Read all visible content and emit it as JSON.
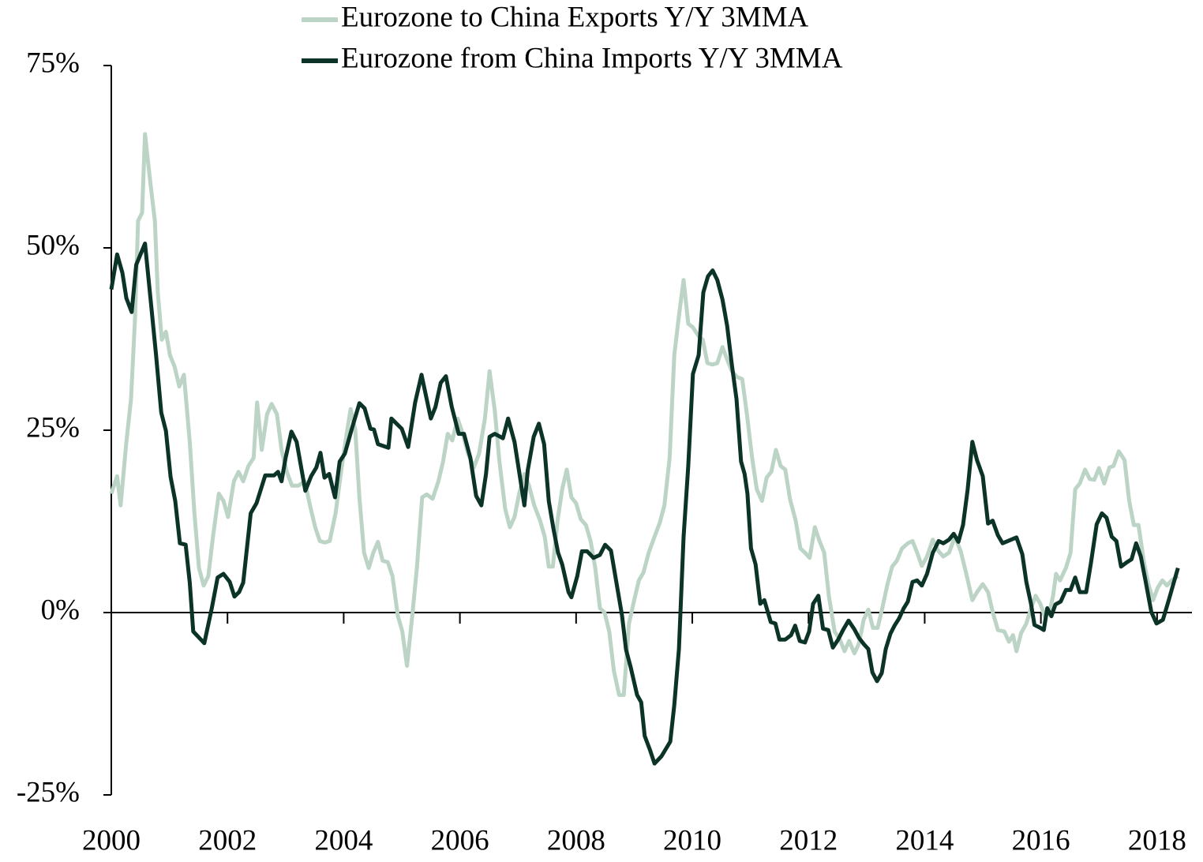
{
  "chart_data": {
    "type": "line",
    "xlim": [
      2000,
      2018.6
    ],
    "xticks": [
      2000,
      2002,
      2004,
      2006,
      2008,
      2010,
      2012,
      2014,
      2016,
      2018
    ],
    "ylim": [
      -25,
      75
    ],
    "yticks": [
      {
        "value": 75,
        "label": "75%"
      },
      {
        "value": 50,
        "label": "50%"
      },
      {
        "value": 25,
        "label": "25%"
      },
      {
        "value": 0,
        "label": "0%"
      },
      {
        "value": -25,
        "label": "-25%"
      }
    ],
    "legend": "top",
    "series": [
      {
        "name": "Eurozone to China Exports Y/Y 3MMA",
        "color": "#bcd4c6",
        "x": [
          2000.0,
          2000.1,
          2000.16,
          2000.26,
          2000.34,
          2000.41,
          2000.46,
          2000.53,
          2000.58,
          2000.67,
          2000.75,
          2000.8,
          2000.87,
          2000.94,
          2001.01,
          2001.09,
          2001.17,
          2001.25,
          2001.35,
          2001.43,
          2001.51,
          2001.59,
          2001.67,
          2001.75,
          2001.85,
          2001.93,
          2002.01,
          2002.11,
          2002.19,
          2002.27,
          2002.36,
          2002.45,
          2002.51,
          2002.59,
          2002.68,
          2002.76,
          2002.85,
          2002.93,
          2003.02,
          2003.11,
          2003.22,
          2003.33,
          2003.42,
          2003.51,
          2003.59,
          2003.67,
          2003.76,
          2003.86,
          2003.95,
          2004.03,
          2004.12,
          2004.2,
          2004.27,
          2004.35,
          2004.43,
          2004.51,
          2004.59,
          2004.67,
          2004.76,
          2004.84,
          2004.93,
          2005.01,
          2005.09,
          2005.18,
          2005.26,
          2005.35,
          2005.43,
          2005.53,
          2005.63,
          2005.71,
          2005.79,
          2005.87,
          2005.96,
          2006.05,
          2006.14,
          2006.24,
          2006.33,
          2006.43,
          2006.51,
          2006.6,
          2006.68,
          2006.78,
          2006.86,
          2006.94,
          2007.02,
          2007.11,
          2007.19,
          2007.28,
          2007.38,
          2007.46,
          2007.53,
          2007.6,
          2007.68,
          2007.76,
          2007.84,
          2007.92,
          2008.0,
          2008.08,
          2008.17,
          2008.25,
          2008.33,
          2008.41,
          2008.49,
          2008.57,
          2008.65,
          2008.74,
          2008.82,
          2008.91,
          2009.0,
          2009.08,
          2009.16,
          2009.25,
          2009.35,
          2009.44,
          2009.52,
          2009.61,
          2009.69,
          2009.77,
          2009.85,
          2009.93,
          2010.01,
          2010.1,
          2010.18,
          2010.26,
          2010.35,
          2010.43,
          2010.52,
          2010.6,
          2010.68,
          2010.77,
          2010.86,
          2010.94,
          2011.03,
          2011.11,
          2011.2,
          2011.28,
          2011.36,
          2011.44,
          2011.52,
          2011.6,
          2011.68,
          2011.78,
          2011.86,
          2011.94,
          2012.02,
          2012.11,
          2012.19,
          2012.27,
          2012.35,
          2012.45,
          2012.54,
          2012.62,
          2012.7,
          2012.79,
          2012.87,
          2012.95,
          2013.03,
          2013.11,
          2013.19,
          2013.27,
          2013.36,
          2013.44,
          2013.52,
          2013.61,
          2013.71,
          2013.79,
          2013.87,
          2013.95,
          2014.04,
          2014.14,
          2014.23,
          2014.32,
          2014.42,
          2014.52,
          2014.62,
          2014.71,
          2014.82,
          2014.9,
          2015.0,
          2015.09,
          2015.17,
          2015.26,
          2015.37,
          2015.45,
          2015.52,
          2015.58,
          2015.66,
          2015.75,
          2015.83,
          2015.91,
          2015.99,
          2016.07,
          2016.15,
          2016.21,
          2016.26,
          2016.33,
          2016.43,
          2016.51,
          2016.59,
          2016.67,
          2016.76,
          2016.84,
          2016.92,
          2017.0,
          2017.09,
          2017.18,
          2017.25,
          2017.34,
          2017.44,
          2017.52,
          2017.6,
          2017.68,
          2017.77,
          2017.85,
          2017.93,
          2018.01,
          2018.09,
          2018.17,
          2018.25,
          2018.36
        ],
        "values": [
          16.3,
          18.7,
          14.7,
          23.4,
          29.3,
          40.7,
          53.7,
          54.8,
          65.6,
          59.1,
          53.7,
          43.9,
          37.4,
          38.5,
          35.3,
          33.7,
          31.0,
          32.6,
          23.4,
          13.6,
          6.1,
          3.7,
          5.0,
          10.4,
          16.3,
          15.3,
          13.1,
          18.0,
          19.3,
          18.0,
          20.1,
          21.2,
          28.8,
          22.3,
          27.2,
          28.6,
          27.2,
          22.3,
          19.3,
          17.4,
          17.4,
          18.0,
          14.7,
          11.7,
          9.8,
          9.6,
          9.8,
          13.6,
          19.0,
          23.4,
          27.9,
          25.0,
          15.8,
          8.2,
          6.1,
          8.2,
          9.7,
          7.1,
          6.9,
          5.0,
          -0.4,
          -2.6,
          -7.3,
          -0.4,
          6.1,
          15.8,
          16.2,
          15.6,
          18.0,
          20.7,
          24.5,
          23.6,
          26.6,
          24.5,
          21.8,
          19.9,
          21.8,
          26.6,
          33.1,
          27.7,
          20.7,
          14.2,
          11.7,
          13.1,
          16.3,
          19.0,
          17.4,
          14.7,
          12.6,
          10.4,
          6.3,
          6.3,
          12.6,
          16.9,
          19.6,
          15.8,
          15.0,
          12.8,
          12.0,
          9.8,
          6.1,
          0.6,
          0,
          -2.6,
          -8.0,
          -11.3,
          -11.3,
          -1.5,
          1.7,
          4.4,
          5.5,
          8.2,
          10.4,
          12.3,
          14.7,
          21.2,
          35.3,
          40.7,
          45.6,
          39.6,
          39.1,
          38.0,
          37.4,
          34.2,
          34.0,
          34.2,
          36.4,
          34.7,
          33.1,
          32.3,
          32.0,
          27.2,
          21.2,
          16.9,
          15.3,
          18.5,
          19.3,
          22.3,
          20.1,
          19.6,
          15.6,
          12.6,
          8.8,
          8.2,
          7.5,
          11.7,
          9.8,
          8.2,
          2.3,
          -2.6,
          -3.7,
          -5.3,
          -3.9,
          -5.6,
          -4.2,
          -1.0,
          0.4,
          -2.1,
          -2.1,
          0.6,
          3.9,
          6.3,
          7.1,
          8.8,
          9.5,
          9.8,
          8.2,
          6.4,
          7.7,
          10.0,
          8.5,
          7.7,
          8.2,
          10.4,
          8.4,
          5.5,
          1.7,
          2.8,
          3.9,
          2.8,
          0.1,
          -2.4,
          -2.6,
          -4.0,
          -3.1,
          -5.3,
          -2.8,
          -1.5,
          0.6,
          2.3,
          1.2,
          -0.6,
          0.1,
          2.3,
          5.3,
          4.4,
          6.1,
          8.2,
          16.9,
          17.7,
          19.6,
          18.3,
          18.2,
          19.8,
          17.7,
          19.9,
          20.1,
          22.1,
          20.9,
          15.3,
          12.0,
          12.0,
          7.1,
          3.9,
          1.7,
          3.4,
          4.4,
          3.7,
          4.4,
          5.0
        ]
      },
      {
        "name": "Eurozone from China Imports Y/Y 3MMA",
        "color": "#0c3327",
        "x": [
          2000.0,
          2000.1,
          2000.19,
          2000.26,
          2000.35,
          2000.43,
          2000.58,
          2000.69,
          2000.77,
          2000.86,
          2000.94,
          2001.02,
          2001.1,
          2001.18,
          2001.28,
          2001.35,
          2001.41,
          2001.6,
          2001.73,
          2001.83,
          2001.93,
          2002.04,
          2002.12,
          2002.2,
          2002.27,
          2002.4,
          2002.5,
          2002.65,
          2002.8,
          2002.87,
          2002.93,
          2003.0,
          2003.1,
          2003.19,
          2003.34,
          2003.44,
          2003.53,
          2003.6,
          2003.67,
          2003.75,
          2003.85,
          2003.93,
          2004.02,
          2004.14,
          2004.27,
          2004.36,
          2004.46,
          2004.52,
          2004.59,
          2004.77,
          2004.82,
          2005.0,
          2005.11,
          2005.23,
          2005.34,
          2005.5,
          2005.58,
          2005.67,
          2005.76,
          2005.86,
          2005.98,
          2006.07,
          2006.18,
          2006.28,
          2006.37,
          2006.45,
          2006.51,
          2006.6,
          2006.74,
          2006.83,
          2006.94,
          2007.11,
          2007.17,
          2007.27,
          2007.36,
          2007.45,
          2007.53,
          2007.61,
          2007.69,
          2007.76,
          2007.87,
          2007.92,
          2008.02,
          2008.1,
          2008.19,
          2008.3,
          2008.41,
          2008.5,
          2008.6,
          2008.79,
          2008.86,
          2008.94,
          2009.05,
          2009.12,
          2009.18,
          2009.27,
          2009.35,
          2009.47,
          2009.62,
          2009.69,
          2009.77,
          2009.85,
          2009.93,
          2010.01,
          2010.11,
          2010.19,
          2010.27,
          2010.35,
          2010.43,
          2010.52,
          2010.6,
          2010.68,
          2010.76,
          2010.84,
          2010.9,
          2010.95,
          2011.01,
          2011.09,
          2011.17,
          2011.24,
          2011.35,
          2011.43,
          2011.5,
          2011.6,
          2011.7,
          2011.77,
          2011.85,
          2011.94,
          2012.01,
          2012.08,
          2012.17,
          2012.25,
          2012.34,
          2012.42,
          2012.51,
          2012.6,
          2012.69,
          2012.79,
          2012.87,
          2012.96,
          2013.03,
          2013.1,
          2013.18,
          2013.26,
          2013.33,
          2013.41,
          2013.48,
          2013.56,
          2013.64,
          2013.71,
          2013.79,
          2013.87,
          2013.95,
          2014.04,
          2014.14,
          2014.24,
          2014.32,
          2014.42,
          2014.5,
          2014.58,
          2014.66,
          2014.74,
          2014.82,
          2014.9,
          2015.0,
          2015.09,
          2015.17,
          2015.26,
          2015.34,
          2015.43,
          2015.58,
          2015.68,
          2015.75,
          2015.83,
          2015.89,
          2015.99,
          2016.05,
          2016.11,
          2016.18,
          2016.25,
          2016.34,
          2016.43,
          2016.51,
          2016.59,
          2016.67,
          2016.78,
          2016.86,
          2016.96,
          2017.05,
          2017.13,
          2017.22,
          2017.3,
          2017.38,
          2017.48,
          2017.56,
          2017.64,
          2017.72,
          2017.8,
          2017.9,
          2017.99,
          2018.1,
          2018.2,
          2018.28,
          2018.36
        ],
        "values": [
          44.3,
          49.1,
          46.6,
          43.1,
          41.2,
          47.7,
          50.6,
          41.8,
          35.3,
          27.4,
          24.9,
          18.6,
          15.3,
          9.5,
          9.3,
          4.1,
          -2.6,
          -4.2,
          0.6,
          4.8,
          5.3,
          4.2,
          2.2,
          2.8,
          4.1,
          13.6,
          15.0,
          18.8,
          18.8,
          19.3,
          18.0,
          21.2,
          24.8,
          23.4,
          16.7,
          18.7,
          19.9,
          21.9,
          18.5,
          19.0,
          15.8,
          20.7,
          21.8,
          25.2,
          28.7,
          28.0,
          25.2,
          25.1,
          23.1,
          22.6,
          26.6,
          25.2,
          22.7,
          28.8,
          32.6,
          26.6,
          28.2,
          31.5,
          32.4,
          28.2,
          24.5,
          24.5,
          21.2,
          16.0,
          14.7,
          19.0,
          24.1,
          24.5,
          23.9,
          26.6,
          23.4,
          14.7,
          19.6,
          24.1,
          25.9,
          23.1,
          15.3,
          11.5,
          8.2,
          6.6,
          2.8,
          2.1,
          5.0,
          8.4,
          8.4,
          7.5,
          7.9,
          9.3,
          8.5,
          -0.4,
          -5.1,
          -7.5,
          -11.3,
          -12.3,
          -16.9,
          -18.8,
          -20.7,
          -19.7,
          -17.7,
          -12.7,
          -5.0,
          10.4,
          20.1,
          32.7,
          35.3,
          43.9,
          46.1,
          46.9,
          45.6,
          42.9,
          39.3,
          34.0,
          29.3,
          20.7,
          19.0,
          16.3,
          8.8,
          6.6,
          1.2,
          1.7,
          -1.3,
          -1.5,
          -3.7,
          -3.7,
          -3.1,
          -1.8,
          -3.9,
          -4.1,
          -2.6,
          1.2,
          2.3,
          -2.2,
          -2.4,
          -4.8,
          -3.7,
          -2.3,
          -1.1,
          -2.3,
          -3.5,
          -4.4,
          -5.0,
          -8.2,
          -9.4,
          -8.3,
          -5.0,
          -2.9,
          -1.8,
          -0.8,
          0.6,
          1.5,
          4.2,
          4.4,
          3.7,
          5.3,
          8.2,
          9.8,
          9.5,
          10.0,
          10.8,
          9.7,
          12.0,
          16.9,
          23.4,
          20.9,
          18.7,
          12.2,
          12.6,
          10.6,
          9.5,
          9.8,
          10.3,
          8.0,
          4.2,
          1.2,
          -1.7,
          -2.1,
          -2.4,
          0.6,
          -0.5,
          1.1,
          1.5,
          3.1,
          3.1,
          4.8,
          2.8,
          2.8,
          6.7,
          12.1,
          13.6,
          13.0,
          10.4,
          9.8,
          6.3,
          6.9,
          7.3,
          9.5,
          7.7,
          4.4,
          0.1,
          -1.5,
          -1.0,
          1.7,
          3.9,
          6.1
        ]
      }
    ]
  }
}
